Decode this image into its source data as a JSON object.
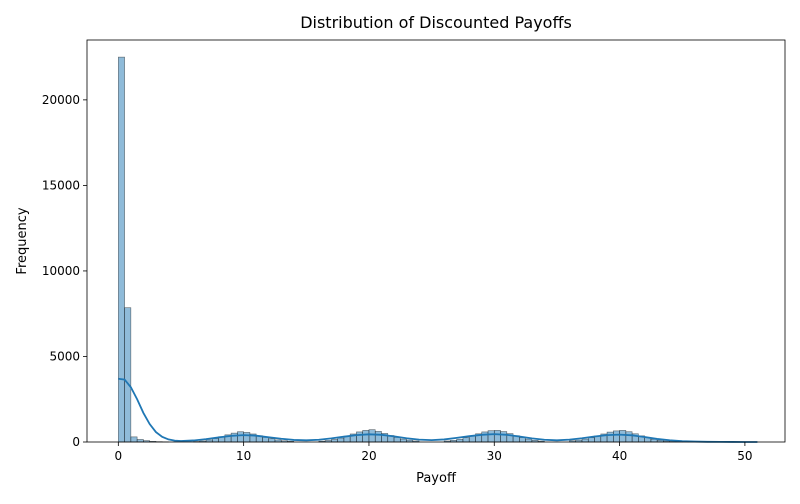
{
  "chart_data": {
    "type": "bar",
    "title": "Distribution of Discounted Payoffs",
    "xlabel": "Payoff",
    "ylabel": "Frequency",
    "xlim": [
      -2.5,
      53.2
    ],
    "ylim": [
      0,
      23500
    ],
    "xticks": [
      0,
      10,
      20,
      30,
      40,
      50
    ],
    "yticks": [
      0,
      5000,
      10000,
      15000,
      20000
    ],
    "bin_width": 0.5,
    "grid": false,
    "bar_color": "#1f77b4",
    "bar_alpha": 0.5,
    "kde_color": "#1f77b4",
    "histogram": {
      "bin_start": [
        0.0,
        0.5,
        1.0,
        1.5,
        2.0,
        2.5,
        3.0,
        3.5,
        6.0,
        6.5,
        7.0,
        7.5,
        8.0,
        8.5,
        9.0,
        9.5,
        10.0,
        10.5,
        11.0,
        11.5,
        12.0,
        12.5,
        13.0,
        13.5,
        16.0,
        16.5,
        17.0,
        17.5,
        18.0,
        18.5,
        19.0,
        19.5,
        20.0,
        20.5,
        21.0,
        21.5,
        22.0,
        22.5,
        23.0,
        23.5,
        26.0,
        26.5,
        27.0,
        27.5,
        28.0,
        28.5,
        29.0,
        29.5,
        30.0,
        30.5,
        31.0,
        31.5,
        32.0,
        32.5,
        33.0,
        33.5,
        36.0,
        36.5,
        37.0,
        37.5,
        38.0,
        38.5,
        39.0,
        39.5,
        40.0,
        40.5,
        41.0,
        41.5,
        42.0,
        42.5,
        43.0,
        43.5,
        44.0,
        44.5,
        45.0,
        45.5
      ],
      "counts": [
        22500,
        7850,
        300,
        150,
        80,
        40,
        20,
        10,
        30,
        60,
        120,
        200,
        310,
        420,
        520,
        600,
        560,
        470,
        370,
        270,
        190,
        120,
        70,
        40,
        50,
        90,
        150,
        230,
        340,
        470,
        590,
        680,
        720,
        620,
        500,
        380,
        270,
        170,
        110,
        60,
        60,
        100,
        160,
        250,
        360,
        480,
        590,
        660,
        680,
        610,
        490,
        370,
        260,
        170,
        100,
        50,
        70,
        110,
        170,
        250,
        350,
        470,
        580,
        650,
        680,
        600,
        480,
        360,
        250,
        160,
        100,
        60,
        35,
        20,
        10,
        5
      ]
    },
    "kde": {
      "x": [
        0,
        0.5,
        1,
        1.5,
        2,
        2.5,
        3,
        3.5,
        4,
        4.5,
        5,
        6,
        7,
        8,
        9,
        10,
        11,
        12,
        13,
        14,
        15,
        16,
        17,
        18,
        19,
        20,
        21,
        22,
        23,
        24,
        25,
        26,
        27,
        28,
        29,
        30,
        31,
        32,
        33,
        34,
        35,
        36,
        37,
        38,
        39,
        40,
        41,
        42,
        43,
        44,
        45,
        46,
        47,
        48,
        49,
        50,
        51
      ],
      "y": [
        3700,
        3650,
        3200,
        2500,
        1700,
        1050,
        580,
        300,
        150,
        80,
        60,
        90,
        170,
        270,
        360,
        400,
        370,
        280,
        190,
        120,
        100,
        130,
        210,
        310,
        400,
        450,
        420,
        330,
        220,
        140,
        110,
        150,
        240,
        340,
        420,
        460,
        420,
        320,
        210,
        130,
        100,
        140,
        220,
        320,
        400,
        430,
        390,
        290,
        180,
        100,
        50,
        25,
        12,
        6,
        3,
        2,
        1
      ]
    }
  }
}
